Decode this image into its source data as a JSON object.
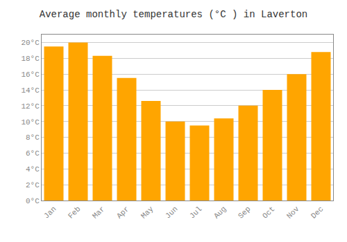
{
  "chart_data": {
    "type": "bar",
    "title": "Average monthly temperatures (°C ) in Laverton",
    "categories": [
      "Jan",
      "Feb",
      "Mar",
      "Apr",
      "May",
      "Jun",
      "Jul",
      "Aug",
      "Sep",
      "Oct",
      "Nov",
      "Dec"
    ],
    "values": [
      19.5,
      20.0,
      18.3,
      15.5,
      12.6,
      10.0,
      9.5,
      10.4,
      12.0,
      14.0,
      16.0,
      18.8
    ],
    "color": "#FFA500",
    "ylim": [
      0,
      21
    ],
    "yticks": [
      {
        "value": 0,
        "label": "0°C"
      },
      {
        "value": 2,
        "label": "2°C"
      },
      {
        "value": 4,
        "label": "4°C"
      },
      {
        "value": 6,
        "label": "6°C"
      },
      {
        "value": 8,
        "label": "8°C"
      },
      {
        "value": 10,
        "label": "10°C"
      },
      {
        "value": 12,
        "label": "12°C"
      },
      {
        "value": 14,
        "label": "14°C"
      },
      {
        "value": 16,
        "label": "16°C"
      },
      {
        "value": 18,
        "label": "18°C"
      },
      {
        "value": 20,
        "label": "20°C"
      }
    ],
    "grid": true
  }
}
